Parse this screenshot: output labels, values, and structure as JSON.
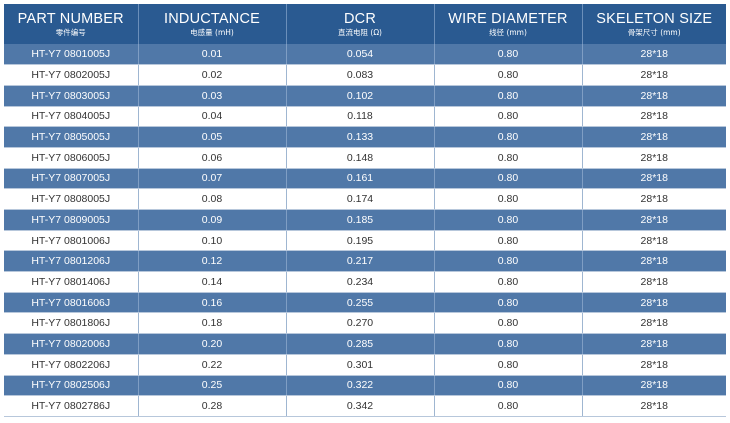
{
  "headers": [
    {
      "en": "PART NUMBER",
      "sub": "零件编号"
    },
    {
      "en": "INDUCTANCE",
      "sub": "电感量 (mH)"
    },
    {
      "en": "DCR",
      "sub": "直流电阻 (Ω)"
    },
    {
      "en": "WIRE DIAMETER",
      "sub": "线径 (mm)"
    },
    {
      "en": "SKELETON SIZE",
      "sub": "骨架尺寸 (mm)"
    }
  ],
  "rows": [
    [
      "HT-Y7 0801005J",
      "0.01",
      "0.054",
      "0.80",
      "28*18"
    ],
    [
      "HT-Y7 0802005J",
      "0.02",
      "0.083",
      "0.80",
      "28*18"
    ],
    [
      "HT-Y7 0803005J",
      "0.03",
      "0.102",
      "0.80",
      "28*18"
    ],
    [
      "HT-Y7 0804005J",
      "0.04",
      "0.118",
      "0.80",
      "28*18"
    ],
    [
      "HT-Y7 0805005J",
      "0.05",
      "0.133",
      "0.80",
      "28*18"
    ],
    [
      "HT-Y7 0806005J",
      "0.06",
      "0.148",
      "0.80",
      "28*18"
    ],
    [
      "HT-Y7 0807005J",
      "0.07",
      "0.161",
      "0.80",
      "28*18"
    ],
    [
      "HT-Y7 0808005J",
      "0.08",
      "0.174",
      "0.80",
      "28*18"
    ],
    [
      "HT-Y7 0809005J",
      "0.09",
      "0.185",
      "0.80",
      "28*18"
    ],
    [
      "HT-Y7 0801006J",
      "0.10",
      "0.195",
      "0.80",
      "28*18"
    ],
    [
      "HT-Y7 0801206J",
      "0.12",
      "0.217",
      "0.80",
      "28*18"
    ],
    [
      "HT-Y7 0801406J",
      "0.14",
      "0.234",
      "0.80",
      "28*18"
    ],
    [
      "HT-Y7 0801606J",
      "0.16",
      "0.255",
      "0.80",
      "28*18"
    ],
    [
      "HT-Y7 0801806J",
      "0.18",
      "0.270",
      "0.80",
      "28*18"
    ],
    [
      "HT-Y7 0802006J",
      "0.20",
      "0.285",
      "0.80",
      "28*18"
    ],
    [
      "HT-Y7 0802206J",
      "0.22",
      "0.301",
      "0.80",
      "28*18"
    ],
    [
      "HT-Y7 0802506J",
      "0.25",
      "0.322",
      "0.80",
      "28*18"
    ],
    [
      "HT-Y7 0802786J",
      "0.28",
      "0.342",
      "0.80",
      "28*18"
    ]
  ],
  "colors": {
    "header_bg": "#2a5a91",
    "row_blue": "#5078a8",
    "row_white": "#ffffff",
    "text_dark": "#333333",
    "text_light": "#ffffff"
  }
}
